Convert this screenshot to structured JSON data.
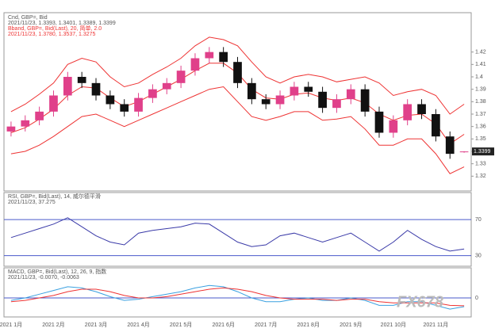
{
  "watermark": "FX678",
  "chart_data": [
    {
      "type": "candlestick",
      "title": "Cnd, GBP=, Bid",
      "subtitle": "2021/11/23, 1.3393, 1.3401, 1.3389, 1.3399",
      "band_title": "Bband, GBP=, Bid(Last), 20, 简单, 2.0",
      "band_subtitle": "2021/11/23, 1.3780, 1.3537, 1.3275",
      "categories": [
        "2021 1月",
        null,
        null,
        "2021 2月",
        null,
        null,
        "2021 3月",
        null,
        null,
        "2021 4月",
        null,
        null,
        "2021 5月",
        null,
        null,
        "2021 6月",
        null,
        null,
        "2021 7月",
        null,
        null,
        "2021 8月",
        null,
        null,
        "2021 9月",
        null,
        null,
        "2021 10月",
        null,
        null,
        "2021 11月",
        null,
        null
      ],
      "open": [
        1.356,
        1.36,
        1.365,
        1.372,
        1.385,
        1.4,
        1.395,
        1.385,
        1.378,
        1.372,
        1.383,
        1.39,
        1.395,
        1.405,
        1.415,
        1.42,
        1.412,
        1.395,
        1.382,
        1.378,
        1.385,
        1.392,
        1.388,
        1.375,
        1.382,
        1.39,
        1.372,
        1.355,
        1.365,
        1.378,
        1.37,
        1.352,
        1.3393
      ],
      "high": [
        1.364,
        1.369,
        1.376,
        1.389,
        1.404,
        1.404,
        1.399,
        1.389,
        1.382,
        1.387,
        1.394,
        1.399,
        1.409,
        1.419,
        1.424,
        1.424,
        1.416,
        1.399,
        1.386,
        1.389,
        1.396,
        1.396,
        1.392,
        1.386,
        1.394,
        1.394,
        1.376,
        1.369,
        1.382,
        1.382,
        1.374,
        1.356,
        1.3401
      ],
      "low": [
        1.352,
        1.356,
        1.361,
        1.368,
        1.381,
        1.391,
        1.381,
        1.374,
        1.368,
        1.368,
        1.379,
        1.386,
        1.391,
        1.401,
        1.411,
        1.408,
        1.391,
        1.378,
        1.374,
        1.374,
        1.381,
        1.384,
        1.371,
        1.371,
        1.378,
        1.368,
        1.351,
        1.351,
        1.361,
        1.366,
        1.348,
        1.334,
        1.3389
      ],
      "close": [
        1.36,
        1.365,
        1.372,
        1.385,
        1.4,
        1.395,
        1.385,
        1.378,
        1.372,
        1.383,
        1.39,
        1.395,
        1.405,
        1.415,
        1.42,
        1.412,
        1.395,
        1.382,
        1.378,
        1.385,
        1.392,
        1.388,
        1.375,
        1.382,
        1.39,
        1.372,
        1.355,
        1.365,
        1.378,
        1.37,
        1.352,
        1.338,
        1.3399
      ],
      "up_color": "#e0408a",
      "down_color": "#111111",
      "series": [
        {
          "name": "Bband upper",
          "color": "#e33",
          "values": [
            1.372,
            1.378,
            1.386,
            1.395,
            1.41,
            1.415,
            1.412,
            1.4,
            1.392,
            1.395,
            1.402,
            1.408,
            1.415,
            1.425,
            1.432,
            1.43,
            1.425,
            1.412,
            1.4,
            1.395,
            1.4,
            1.402,
            1.4,
            1.396,
            1.398,
            1.4,
            1.395,
            1.385,
            1.388,
            1.39,
            1.385,
            1.37,
            1.378
          ]
        },
        {
          "name": "Bband middle",
          "color": "#e33",
          "values": [
            1.355,
            1.359,
            1.366,
            1.374,
            1.385,
            1.392,
            1.391,
            1.383,
            1.376,
            1.38,
            1.386,
            1.392,
            1.398,
            1.405,
            1.411,
            1.411,
            1.403,
            1.39,
            1.383,
            1.382,
            1.386,
            1.387,
            1.383,
            1.381,
            1.383,
            1.379,
            1.37,
            1.365,
            1.369,
            1.37,
            1.362,
            1.346,
            1.3537
          ]
        },
        {
          "name": "Bband lower",
          "color": "#e33",
          "values": [
            1.338,
            1.34,
            1.345,
            1.352,
            1.36,
            1.368,
            1.37,
            1.365,
            1.36,
            1.365,
            1.37,
            1.375,
            1.38,
            1.385,
            1.39,
            1.392,
            1.38,
            1.368,
            1.365,
            1.368,
            1.372,
            1.372,
            1.365,
            1.366,
            1.368,
            1.358,
            1.345,
            1.345,
            1.35,
            1.35,
            1.338,
            1.322,
            1.3275
          ]
        }
      ],
      "ylim": [
        1.31,
        1.43
      ],
      "yticks": [
        1.32,
        1.33,
        1.34,
        1.35,
        1.36,
        1.37,
        1.38,
        1.39,
        1.4,
        1.41,
        1.42
      ]
    },
    {
      "type": "line",
      "title": "RSI, GBP=, Bid(Last), 14, 威尔德平滑",
      "subtitle": "2021/11/23, 37.275",
      "series": [
        {
          "name": "RSI",
          "color": "#3a3aa8",
          "values": [
            50,
            55,
            60,
            65,
            72,
            62,
            52,
            45,
            42,
            55,
            58,
            60,
            62,
            66,
            65,
            55,
            45,
            40,
            42,
            52,
            55,
            50,
            45,
            50,
            55,
            45,
            35,
            45,
            58,
            48,
            40,
            35,
            37.275
          ]
        }
      ],
      "ylim": [
        20,
        85
      ],
      "yticks": [
        30,
        70
      ]
    },
    {
      "type": "line",
      "title": "MACD, GBP=, Bid(Last), 12, 26, 9, 指数",
      "subtitle": "2021/11/23, -0.0070, -0.0063",
      "series": [
        {
          "name": "MACD",
          "color": "#3aa0e0",
          "values": [
            -0.002,
            0.0,
            0.003,
            0.006,
            0.009,
            0.008,
            0.005,
            0.001,
            -0.002,
            -0.001,
            0.001,
            0.003,
            0.005,
            0.008,
            0.01,
            0.009,
            0.005,
            0.0,
            -0.003,
            -0.003,
            -0.001,
            0.0,
            -0.002,
            -0.002,
            0.0,
            -0.002,
            -0.006,
            -0.006,
            -0.003,
            -0.003,
            -0.006,
            -0.009,
            -0.007
          ]
        },
        {
          "name": "Signal",
          "color": "#e33",
          "values": [
            -0.003,
            -0.002,
            0.0,
            0.002,
            0.005,
            0.007,
            0.007,
            0.005,
            0.002,
            0.0,
            0.0,
            0.001,
            0.003,
            0.005,
            0.007,
            0.008,
            0.007,
            0.005,
            0.002,
            0.0,
            -0.001,
            -0.001,
            -0.001,
            -0.002,
            -0.001,
            -0.001,
            -0.003,
            -0.004,
            -0.004,
            -0.004,
            -0.004,
            -0.006,
            -0.0063
          ]
        }
      ],
      "ylim": [
        -0.014,
        0.014
      ],
      "yticks": [
        0
      ]
    }
  ]
}
